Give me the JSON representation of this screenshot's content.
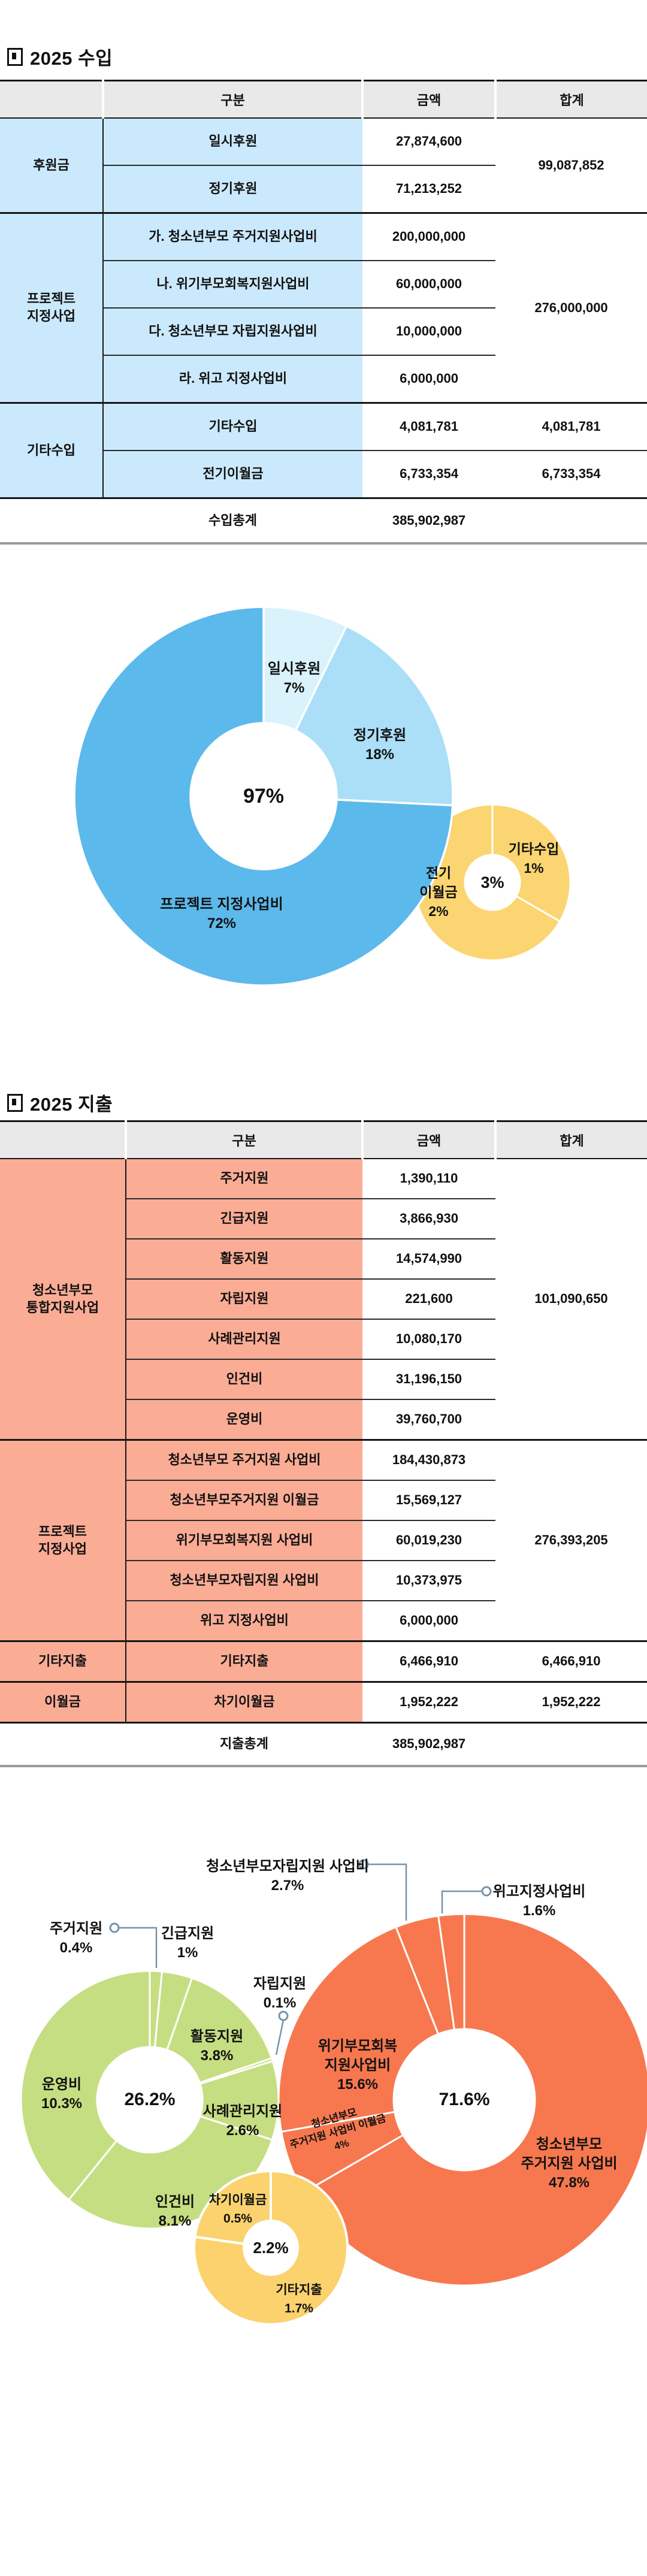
{
  "sections": {
    "income": {
      "title": "2025 수입"
    },
    "expense": {
      "title": "2025 지출"
    }
  },
  "table_headers": {
    "gubun": "구분",
    "amount": "금액",
    "total": "합계"
  },
  "income_table": {
    "groups": [
      {
        "category": "후원금",
        "rows": [
          {
            "label": "일시후원",
            "amount": "27,874,600"
          },
          {
            "label": "정기후원",
            "amount": "71,213,252"
          }
        ],
        "total": "99,087,852"
      },
      {
        "category": "프로젝트",
        "category2": "지정사업",
        "rows": [
          {
            "label": "가. 청소년부모 주거지원사업비",
            "amount": "200,000,000"
          },
          {
            "label": "나. 위기부모회복지원사업비",
            "amount": "60,000,000"
          },
          {
            "label": "다. 청소년부모 자립지원사업비",
            "amount": "10,000,000"
          },
          {
            "label": "라. 위고 지정사업비",
            "amount": "6,000,000"
          }
        ],
        "total": "276,000,000"
      },
      {
        "category": "기타수입",
        "rows": [
          {
            "label": "기타수입",
            "amount": "4,081,781",
            "row_total": "4,081,781"
          },
          {
            "label": "전기이월금",
            "amount": "6,733,354",
            "row_total": "6,733,354"
          }
        ]
      }
    ],
    "footer": {
      "label": "수입총계",
      "amount": "385,902,987"
    }
  },
  "expense_table": {
    "groups": [
      {
        "category": "청소년부모",
        "category2": "통합지원사업",
        "rows": [
          {
            "label": "주거지원",
            "amount": "1,390,110"
          },
          {
            "label": "긴급지원",
            "amount": "3,866,930"
          },
          {
            "label": "활동지원",
            "amount": "14,574,990"
          },
          {
            "label": "자립지원",
            "amount": "221,600"
          },
          {
            "label": "사례관리지원",
            "amount": "10,080,170"
          },
          {
            "label": "인건비",
            "amount": "31,196,150"
          },
          {
            "label": "운영비",
            "amount": "39,760,700"
          }
        ],
        "total": "101,090,650"
      },
      {
        "category": "프로젝트",
        "category2": "지정사업",
        "rows": [
          {
            "label": "청소년부모 주거지원 사업비",
            "amount": "184,430,873"
          },
          {
            "label": "청소년부모주거지원 이월금",
            "amount": "15,569,127"
          },
          {
            "label": "위기부모회복지원 사업비",
            "amount": "60,019,230"
          },
          {
            "label": "청소년부모자립지원 사업비",
            "amount": "10,373,975"
          },
          {
            "label": "위고 지정사업비",
            "amount": "6,000,000"
          }
        ],
        "total": "276,393,205"
      },
      {
        "category": "기타지출",
        "rows": [
          {
            "label": "기타지출",
            "amount": "6,466,910",
            "row_total": "6,466,910"
          }
        ]
      },
      {
        "category": "이월금",
        "rows": [
          {
            "label": "차기이월금",
            "amount": "1,952,222",
            "row_total": "1,952,222"
          }
        ]
      }
    ],
    "footer": {
      "label": "지출총계",
      "amount": "385,902,987"
    }
  },
  "chart_data": [
    {
      "type": "pie",
      "name": "income-composition-donut",
      "donuts": [
        {
          "name": "sub-3pct",
          "center_label": "3%",
          "segments": [
            {
              "label": "기타수입",
              "pct": 1,
              "pct_label": "1%",
              "color": "#FBD571"
            },
            {
              "label": "전기 이월금",
              "label_lines": [
                "전기",
                "이월금"
              ],
              "pct": 2,
              "pct_label": "2%",
              "color": "#FBD571"
            }
          ]
        },
        {
          "name": "main-97pct",
          "center_label": "97%",
          "segments": [
            {
              "label": "일시후원",
              "pct": 7,
              "pct_label": "7%",
              "color": "#D9F2FC"
            },
            {
              "label": "정기후원",
              "pct": 18,
              "pct_label": "18%",
              "color": "#AADFF7"
            },
            {
              "label": "프로젝트 지정사업비",
              "pct": 72,
              "pct_label": "72%",
              "color": "#5CB9EB"
            }
          ]
        }
      ]
    },
    {
      "type": "pie",
      "name": "expense-composition-donut",
      "donuts": [
        {
          "name": "integrated-26.2pct",
          "center_label": "26.2%",
          "segments": [
            {
              "label": "주거지원",
              "pct": 0.4,
              "pct_label": "0.4%",
              "color": "#C6DE82"
            },
            {
              "label": "긴급지원",
              "pct": 1,
              "pct_label": "1%",
              "color": "#C6DE82"
            },
            {
              "label": "활동지원",
              "pct": 3.8,
              "pct_label": "3.8%",
              "color": "#C6DE82"
            },
            {
              "label": "자립지원",
              "pct": 0.1,
              "pct_label": "0.1%",
              "color": "#C6DE82"
            },
            {
              "label": "사례관리지원",
              "pct": 2.6,
              "pct_label": "2.6%",
              "color": "#C6DE82"
            },
            {
              "label": "인건비",
              "pct": 8.1,
              "pct_label": "8.1%",
              "color": "#C6DE82"
            },
            {
              "label": "운영비",
              "pct": 10.3,
              "pct_label": "10.3%",
              "color": "#C6DE82"
            }
          ]
        },
        {
          "name": "project-71.6pct",
          "center_label": "71.6%",
          "segments": [
            {
              "label": "청소년부모 주거지원 사업비",
              "label_lines": [
                "청소년부모",
                "주거지원 사업비"
              ],
              "pct": 47.8,
              "pct_label": "47.8%",
              "color": "#F7784F"
            },
            {
              "label": "청소년부모 주거지원 사업비 이월금",
              "label_lines": [
                "청소년부모",
                "주거지원 사업비 이월금"
              ],
              "pct": 4,
              "pct_label": "4%",
              "color": "#F7784F"
            },
            {
              "label": "위기부모회복 지원사업비",
              "label_lines": [
                "위기부모회복",
                "지원사업비"
              ],
              "pct": 15.6,
              "pct_label": "15.6%",
              "color": "#F7784F"
            },
            {
              "label": "청소년부모자립지원 사업비",
              "pct": 2.7,
              "pct_label": "2.7%",
              "color": "#F7784F"
            },
            {
              "label": "위고지정사업비",
              "pct": 1.6,
              "pct_label": "1.6%",
              "color": "#F7784F"
            }
          ]
        },
        {
          "name": "etc-2.2pct",
          "center_label": "2.2%",
          "segments": [
            {
              "label": "기타지출",
              "pct": 1.7,
              "pct_label": "1.7%",
              "color": "#FBD26E"
            },
            {
              "label": "차기이월금",
              "pct": 0.5,
              "pct_label": "0.5%",
              "color": "#FBD26E"
            }
          ]
        }
      ]
    }
  ],
  "colors": {
    "income_cell": "#CBE9FC",
    "expense_cell": "#FBAC95",
    "header_cell": "#E9E9E9",
    "leader_line": "#7793A8"
  }
}
